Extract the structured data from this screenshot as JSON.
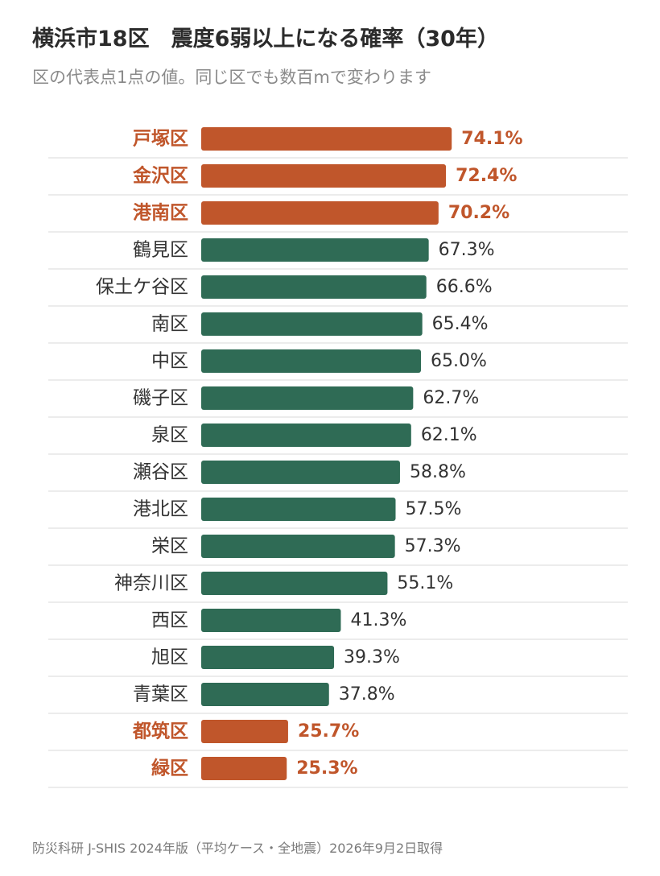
{
  "title": "横浜市18区　震度6弱以上になる確率（30年）",
  "subtitle": "区の代表点1点の値。同じ区でも数百mで変わります",
  "source": "防災科研 J-SHIS 2024年版（平均ケース・全地震）2026年9月2日取得",
  "colors": {
    "highlight": "#c0562b",
    "normal": "#2f6b55",
    "label_normal": "#333333",
    "gridline": "#e6e6e6"
  },
  "chart_data": {
    "type": "bar",
    "orientation": "horizontal",
    "unit": "%",
    "xlim": [
      0,
      100
    ],
    "grid": false,
    "title": "横浜市18区　震度6弱以上になる確率（30年）",
    "categories": [
      "戸塚区",
      "金沢区",
      "港南区",
      "鶴見区",
      "保土ケ谷区",
      "南区",
      "中区",
      "磯子区",
      "泉区",
      "瀬谷区",
      "港北区",
      "栄区",
      "神奈川区",
      "西区",
      "旭区",
      "青葉区",
      "都筑区",
      "緑区"
    ],
    "values": [
      74.1,
      72.4,
      70.2,
      67.3,
      66.6,
      65.4,
      65.0,
      62.7,
      62.1,
      58.8,
      57.5,
      57.3,
      55.1,
      41.3,
      39.3,
      37.8,
      25.7,
      25.3
    ],
    "value_labels": [
      "74.1%",
      "72.4%",
      "70.2%",
      "67.3%",
      "66.6%",
      "65.4%",
      "65.0%",
      "62.7%",
      "62.1%",
      "58.8%",
      "57.5%",
      "57.3%",
      "55.1%",
      "41.3%",
      "39.3%",
      "37.8%",
      "25.7%",
      "25.3%"
    ],
    "highlighted": [
      true,
      true,
      true,
      false,
      false,
      false,
      false,
      false,
      false,
      false,
      false,
      false,
      false,
      false,
      false,
      false,
      true,
      true
    ]
  }
}
